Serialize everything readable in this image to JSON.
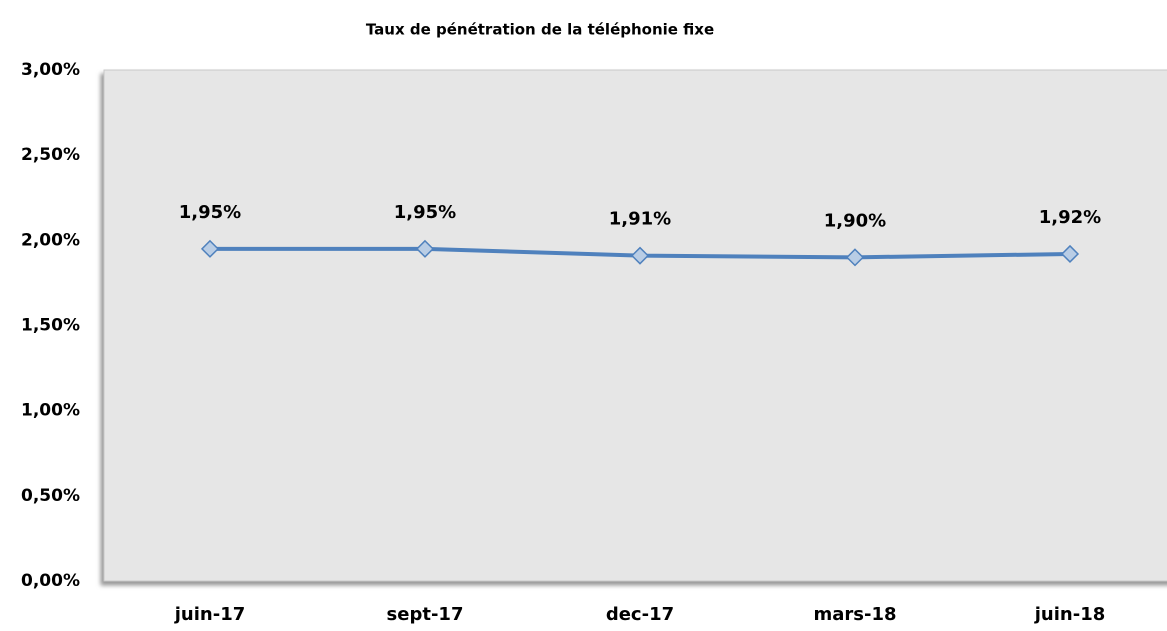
{
  "chart_data": {
    "type": "line",
    "title": "Taux de pénétration de la téléphonie fixe",
    "categories": [
      "juin-17",
      "sept-17",
      "dec-17",
      "mars-18",
      "juin-18"
    ],
    "values": [
      1.95,
      1.95,
      1.91,
      1.9,
      1.92
    ],
    "value_labels": [
      "1,95%",
      "1,95%",
      "1,91%",
      "1,90%",
      "1,92%"
    ],
    "color": "#4f81bd",
    "marker_color": "#b9cde5",
    "ylim": [
      0,
      3
    ],
    "yticks": [
      {
        "value": 0,
        "label": "0,00%"
      },
      {
        "value": 0.5,
        "label": "0,50%"
      },
      {
        "value": 1,
        "label": "1,00%"
      },
      {
        "value": 1.5,
        "label": "1,50%"
      },
      {
        "value": 2,
        "label": "2,00%"
      },
      {
        "value": 2.5,
        "label": "2,50%"
      },
      {
        "value": 3,
        "label": "3,00%"
      }
    ],
    "grid": false
  }
}
